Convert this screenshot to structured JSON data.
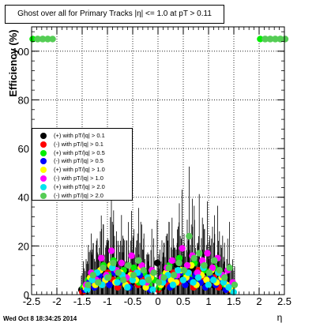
{
  "title": "Ghost over all for Primary Tracks |η| <= 1.0 at pT > 0.11",
  "timestamp": "Wed Oct  8 18:34:25 2014",
  "chart_data": {
    "type": "scatter",
    "xlabel": "η",
    "ylabel": "Efficiency (%)",
    "xlim": [
      -2.5,
      2.5
    ],
    "ylim": [
      0,
      110
    ],
    "xticks": [
      "-2.5",
      "-2",
      "-1.5",
      "-1",
      "-0.5",
      "0",
      "0.5",
      "1",
      "1.5",
      "2",
      "2.5"
    ],
    "yticks": [
      "0",
      "20",
      "40",
      "60",
      "80",
      "100"
    ],
    "grid": true,
    "legend_position": "middle-left",
    "series": [
      {
        "name": "(+) with pT/|q| > 0.1",
        "color": "#000000",
        "x": [
          -1.45,
          -1.35,
          -1.25,
          -1.15,
          -1.05,
          -0.95,
          -0.85,
          -0.75,
          -0.65,
          -0.55,
          -0.45,
          -0.35,
          -0.25,
          -0.15,
          0.05,
          0.15,
          0.25,
          0.35,
          0.45,
          0.55,
          0.65,
          0.75,
          0.85,
          0.95,
          1.05,
          1.15,
          1.25,
          1.35,
          1.45
        ],
        "y": [
          2,
          4,
          6,
          8,
          10,
          7,
          5,
          9,
          6,
          8,
          5,
          7,
          4,
          6,
          13,
          3,
          9,
          5,
          12,
          8,
          6,
          11,
          7,
          5,
          9,
          4,
          6,
          3,
          2
        ]
      },
      {
        "name": "(-) with pT/|q| > 0.1",
        "color": "#ff0000",
        "x": [
          -1.45,
          -1.35,
          -1.25,
          -1.15,
          -1.05,
          -0.95,
          -0.85,
          -0.75,
          -0.65,
          -0.55,
          -0.45,
          -0.35,
          -0.25,
          -0.15,
          0.05,
          0.15,
          0.25,
          0.35,
          0.45,
          0.55,
          0.65,
          0.75,
          0.85,
          0.95,
          1.05,
          1.15,
          1.25,
          1.35,
          1.45
        ],
        "y": [
          1,
          3,
          5,
          7,
          4,
          9,
          6,
          3,
          8,
          5,
          10,
          4,
          6,
          3,
          2,
          7,
          4,
          9,
          5,
          6,
          8,
          3,
          10,
          6,
          4,
          7,
          3,
          5,
          2
        ]
      },
      {
        "name": "(+) with pT/|q| > 0.5",
        "color": "#00ee00",
        "x": [
          -2.45,
          -2.35,
          -2.25,
          -2.15,
          -1.45,
          -1.35,
          -1.25,
          -1.15,
          -1.05,
          -0.95,
          -0.85,
          -0.75,
          -0.65,
          -0.55,
          -0.45,
          -0.35,
          -0.25,
          -0.15,
          -0.05,
          0.05,
          0.15,
          0.25,
          0.35,
          0.45,
          0.55,
          0.65,
          0.75,
          0.85,
          0.95,
          1.05,
          1.15,
          1.25,
          1.35,
          1.45,
          2.05,
          2.15,
          2.25,
          2.35,
          2.45
        ],
        "y": [
          105,
          105,
          105,
          105,
          3,
          6,
          9,
          5,
          12,
          8,
          14,
          6,
          10,
          7,
          11,
          5,
          9,
          4,
          6,
          3,
          8,
          12,
          6,
          15,
          9,
          7,
          13,
          5,
          10,
          8,
          11,
          6,
          4,
          3,
          105,
          105,
          105,
          105,
          105
        ]
      },
      {
        "name": "(-) with pT/|q| > 0.5",
        "color": "#0000ff",
        "x": [
          -1.45,
          -1.35,
          -1.25,
          -1.15,
          -1.05,
          -0.95,
          -0.85,
          -0.75,
          -0.65,
          -0.55,
          -0.45,
          -0.35,
          -0.25,
          -0.15,
          0.05,
          0.15,
          0.25,
          0.35,
          0.45,
          0.55,
          0.65,
          0.75,
          0.85,
          0.95,
          1.05,
          1.15,
          1.25,
          1.35,
          1.45
        ],
        "y": [
          2,
          5,
          3,
          8,
          6,
          4,
          9,
          5,
          7,
          3,
          6,
          8,
          4,
          2,
          5,
          6,
          3,
          7,
          9,
          4,
          6,
          8,
          5,
          3,
          7,
          4,
          6,
          2,
          3
        ]
      },
      {
        "name": "(+) with pT/|q| > 1.0",
        "color": "#ffff00",
        "x": [
          -1.45,
          -1.35,
          -1.25,
          -1.15,
          -1.05,
          -0.95,
          -0.85,
          -0.75,
          -0.65,
          -0.55,
          -0.45,
          -0.35,
          -0.25,
          -0.15,
          0.05,
          0.15,
          0.25,
          0.35,
          0.45,
          0.55,
          0.65,
          0.75,
          0.85,
          0.95,
          1.05,
          1.15,
          1.25,
          1.35,
          1.45
        ],
        "y": [
          3,
          7,
          4,
          10,
          6,
          12,
          5,
          9,
          4,
          8,
          6,
          11,
          3,
          7,
          4,
          9,
          6,
          5,
          10,
          7,
          12,
          4,
          8,
          6,
          10,
          5,
          7,
          4,
          2
        ]
      },
      {
        "name": "(-) with pT/|q| > 1.0",
        "color": "#ff00ff",
        "x": [
          -1.45,
          -1.35,
          -1.25,
          -1.15,
          -1.05,
          -0.95,
          -0.85,
          -0.75,
          -0.65,
          -0.55,
          -0.45,
          -0.35,
          -0.25,
          -0.15,
          0.05,
          0.15,
          0.25,
          0.35,
          0.45,
          0.55,
          0.65,
          0.75,
          0.85,
          0.95,
          1.05,
          1.15,
          1.25,
          1.35,
          1.45
        ],
        "y": [
          4,
          9,
          6,
          15,
          8,
          18,
          10,
          13,
          7,
          16,
          9,
          12,
          5,
          10,
          7,
          11,
          14,
          8,
          19,
          12,
          16,
          9,
          14,
          17,
          11,
          15,
          8,
          10,
          5
        ]
      },
      {
        "name": "(+) with pT/|q| > 2.0",
        "color": "#00e5ee",
        "x": [
          -1.45,
          -1.35,
          -1.25,
          -1.15,
          -1.05,
          -0.95,
          -0.85,
          -0.75,
          -0.65,
          -0.55,
          -0.45,
          -0.35,
          -0.25,
          -0.15,
          0.05,
          0.15,
          0.25,
          0.35,
          0.45,
          0.55,
          0.65,
          0.75,
          0.85,
          0.95,
          1.05,
          1.15,
          1.25,
          1.35,
          1.45
        ],
        "y": [
          2,
          6,
          9,
          4,
          7,
          11,
          5,
          8,
          3,
          6,
          9,
          5,
          7,
          2,
          5,
          8,
          4,
          10,
          6,
          9,
          5,
          7,
          11,
          4,
          6,
          9,
          5,
          3,
          1
        ]
      },
      {
        "name": "(-) with pT/|q| > 2.0",
        "color": "#55cc55",
        "x": [
          -2.45,
          -2.35,
          -2.25,
          -2.15,
          -1.45,
          -1.35,
          -1.25,
          -1.15,
          -1.05,
          -0.95,
          -0.85,
          -0.75,
          -0.65,
          -0.55,
          -0.45,
          -0.35,
          -0.25,
          -0.15,
          -0.05,
          0.05,
          0.15,
          0.25,
          0.35,
          0.45,
          0.55,
          0.65,
          0.75,
          0.85,
          0.95,
          1.05,
          1.15,
          1.25,
          1.35,
          1.45,
          2.05,
          2.15,
          2.25,
          2.35,
          2.45
        ],
        "y": [
          105,
          105,
          105,
          105,
          4,
          8,
          5,
          11,
          7,
          13,
          9,
          6,
          12,
          8,
          14,
          10,
          6,
          9,
          5,
          7,
          11,
          8,
          13,
          10,
          24,
          15,
          17,
          12,
          9,
          14,
          10,
          7,
          11,
          4,
          105,
          105,
          105,
          105,
          105
        ]
      }
    ]
  }
}
